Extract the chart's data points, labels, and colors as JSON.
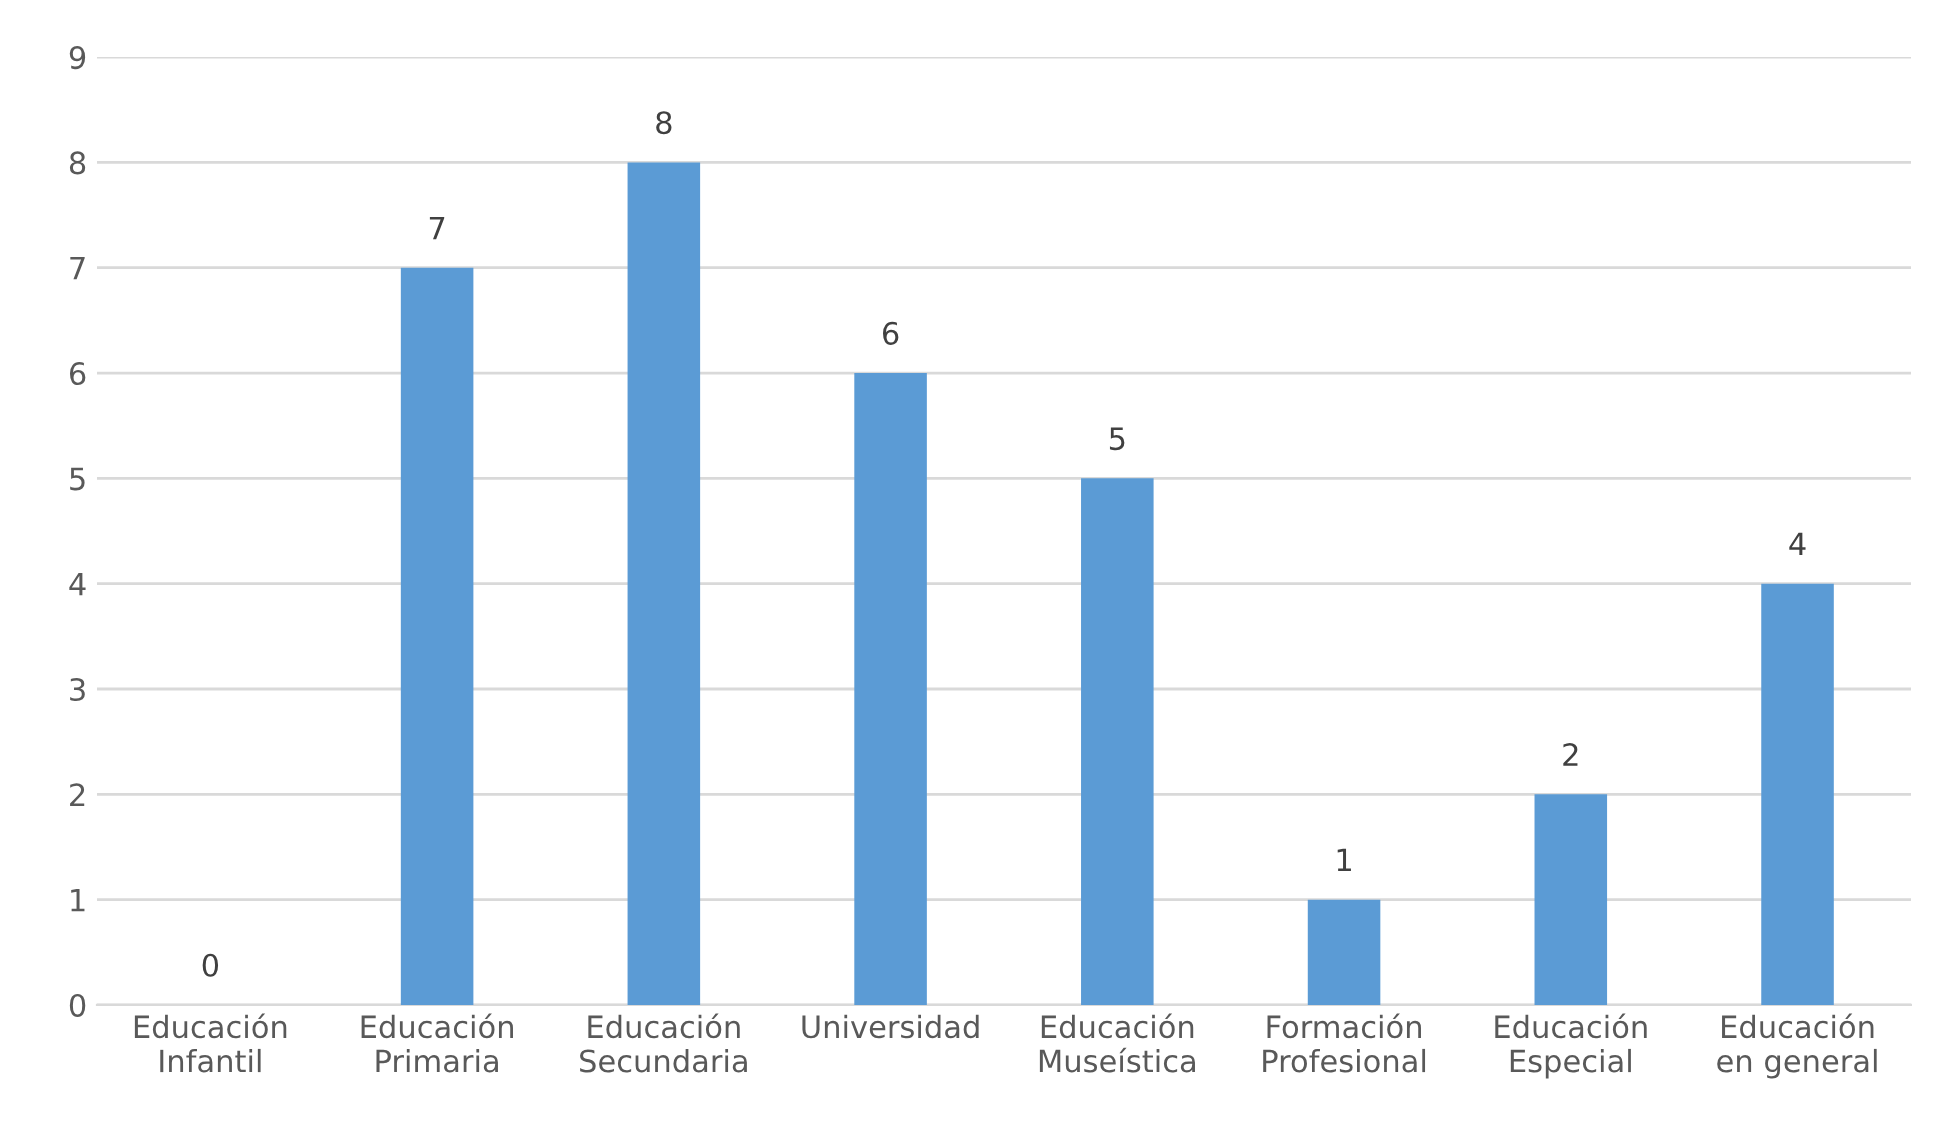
{
  "chart_data": {
    "type": "bar",
    "categories": [
      "Educación\nInfantil",
      "Educación\nPrimaria",
      "Educación\nSecundaria",
      "Universidad",
      "Educación\nMuseística",
      "Formación\nProfesional",
      "Educación\nEspecial",
      "Educación\nen general"
    ],
    "values": [
      0,
      7,
      8,
      6,
      5,
      1,
      2,
      4
    ],
    "color": "#5b9bd5",
    "ylim": [
      0,
      9
    ],
    "yticks": [
      0,
      1,
      2,
      3,
      4,
      5,
      6,
      7,
      8,
      9
    ],
    "grid": "y",
    "data_labels": true,
    "legend": false
  }
}
